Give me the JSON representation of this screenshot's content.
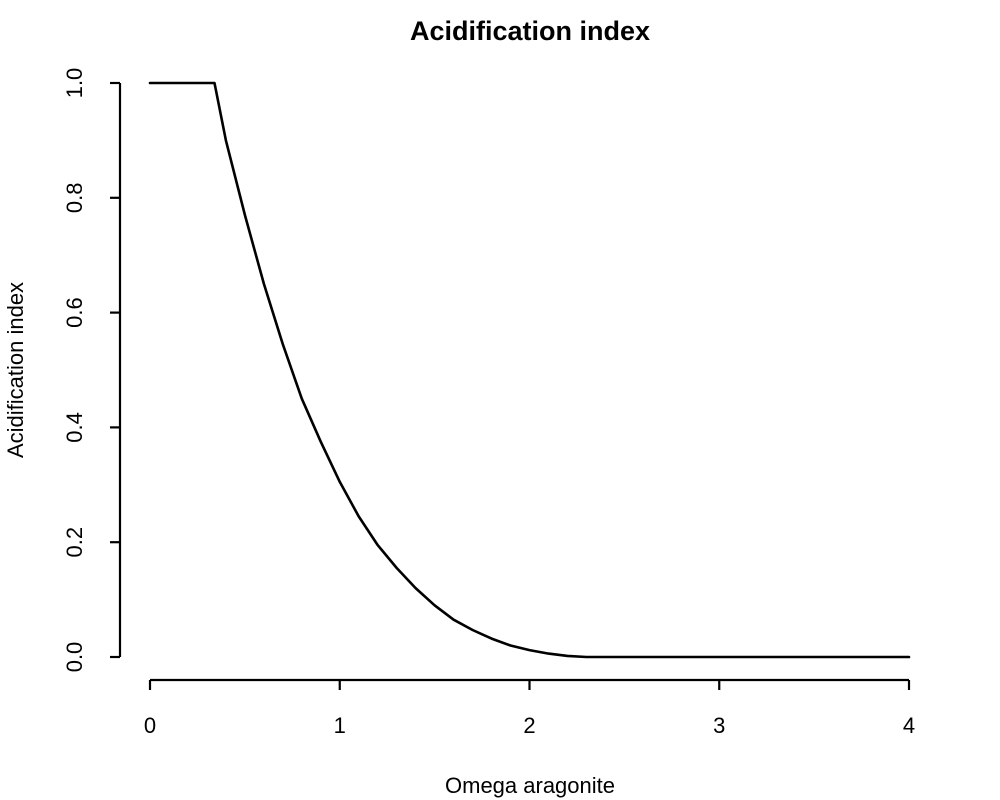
{
  "chart_data": {
    "type": "line",
    "title": "Acidification index",
    "xlabel": "Omega aragonite",
    "ylabel": "Acidification index",
    "xlim": [
      0,
      4
    ],
    "ylim": [
      0,
      1
    ],
    "x_ticks": [
      "0",
      "1",
      "2",
      "3",
      "4"
    ],
    "y_ticks": [
      "0.0",
      "0.2",
      "0.4",
      "0.6",
      "0.8",
      "1.0"
    ],
    "grid": false,
    "series": [
      {
        "color": "#000000",
        "x": [
          0,
          0.1,
          0.2,
          0.3,
          0.34,
          0.4,
          0.5,
          0.6,
          0.7,
          0.8,
          0.9,
          1.0,
          1.1,
          1.2,
          1.3,
          1.4,
          1.5,
          1.6,
          1.7,
          1.8,
          1.9,
          2.0,
          2.1,
          2.2,
          2.3,
          2.5,
          3.0,
          3.5,
          4.0
        ],
        "y": [
          1,
          1,
          1,
          1,
          1,
          0.9,
          0.77,
          0.65,
          0.545,
          0.45,
          0.375,
          0.305,
          0.245,
          0.195,
          0.155,
          0.12,
          0.09,
          0.065,
          0.047,
          0.032,
          0.02,
          0.012,
          0.006,
          0.002,
          0,
          0,
          0,
          0,
          0
        ]
      }
    ]
  }
}
